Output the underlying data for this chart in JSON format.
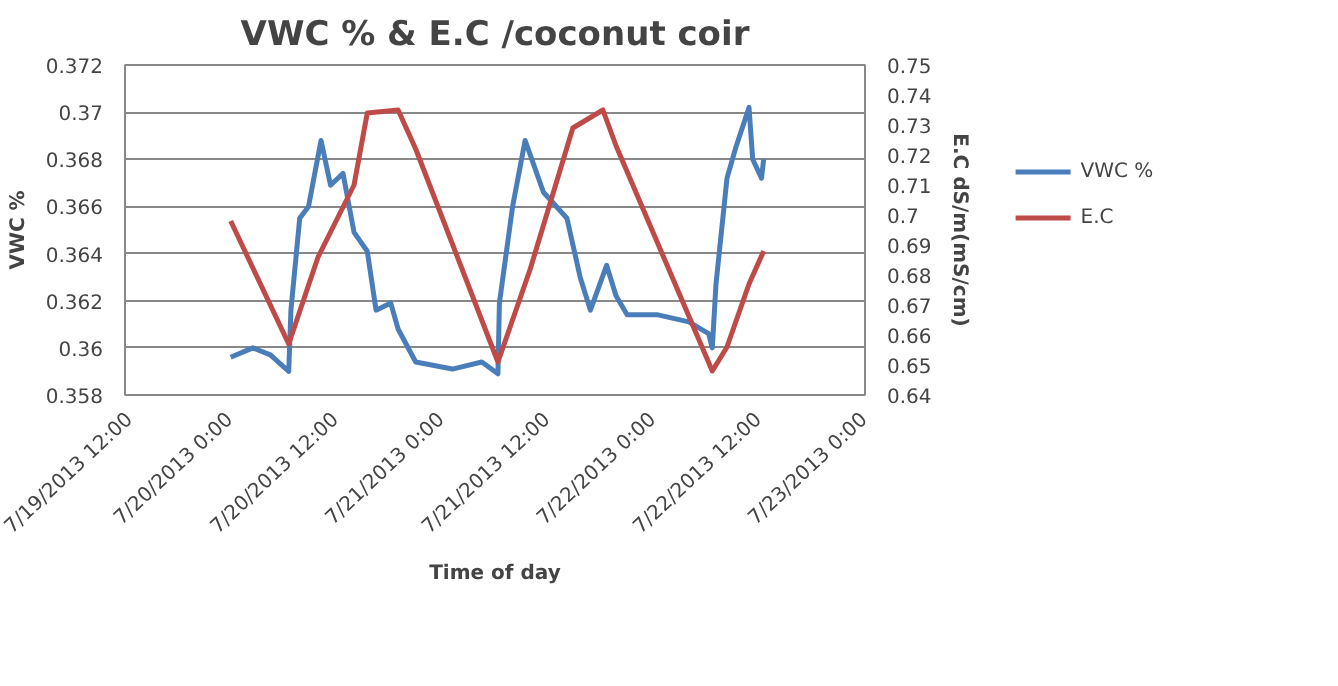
{
  "chart_data": {
    "type": "line",
    "title": "VWC % & E.C /coconut coir",
    "xlabel": "Time of day",
    "ylabel": "VWC %",
    "y2label": "E.C dS/m(mS/cm)",
    "xlim": [
      "2013-07-19T12:00",
      "2013-07-23T00:00"
    ],
    "xticks": [
      {
        "value": "2013-07-19T12:00",
        "label": "7/19/2013 12:00"
      },
      {
        "value": "2013-07-20T00:00",
        "label": "7/20/2013 0:00"
      },
      {
        "value": "2013-07-20T12:00",
        "label": "7/20/2013 12:00"
      },
      {
        "value": "2013-07-21T00:00",
        "label": "7/21/2013 0:00"
      },
      {
        "value": "2013-07-21T12:00",
        "label": "7/21/2013 12:00"
      },
      {
        "value": "2013-07-22T00:00",
        "label": "7/22/2013 0:00"
      },
      {
        "value": "2013-07-22T12:00",
        "label": "7/22/2013 12:00"
      },
      {
        "value": "2013-07-23T00:00",
        "label": "7/23/2013 0:00"
      }
    ],
    "ylim": [
      0.358,
      0.372
    ],
    "yticks": [
      0.358,
      0.36,
      0.362,
      0.364,
      0.366,
      0.368,
      0.37,
      0.372
    ],
    "y2lim": [
      0.64,
      0.75
    ],
    "y2ticks": [
      0.64,
      0.65,
      0.66,
      0.67,
      0.68,
      0.69,
      0.7,
      0.71,
      0.72,
      0.73,
      0.74,
      0.75
    ],
    "grid": "y",
    "legend": "right",
    "line_style": "solid",
    "marker": "none",
    "series": [
      {
        "name": "VWC %",
        "color": "#4a7ebb",
        "x": [
          "2013-07-20T00:00",
          "2013-07-20T02:30",
          "2013-07-20T04:30",
          "2013-07-20T06:35",
          "2013-07-20T06:50",
          "2013-07-20T07:50",
          "2013-07-20T08:50",
          "2013-07-20T10:15",
          "2013-07-20T11:20",
          "2013-07-20T12:45",
          "2013-07-20T14:00",
          "2013-07-20T15:30",
          "2013-07-20T16:30",
          "2013-07-20T18:10",
          "2013-07-20T19:00",
          "2013-07-20T21:00",
          "2013-07-21T01:10",
          "2013-07-21T04:30",
          "2013-07-21T06:20",
          "2013-07-21T06:30",
          "2013-07-21T08:00",
          "2013-07-21T09:25",
          "2013-07-21T11:30",
          "2013-07-21T14:10",
          "2013-07-21T15:40",
          "2013-07-21T16:50",
          "2013-07-21T18:40",
          "2013-07-21T19:45",
          "2013-07-21T21:00",
          "2013-07-22T00:30",
          "2013-07-22T04:00",
          "2013-07-22T06:15",
          "2013-07-22T06:40",
          "2013-07-22T07:05",
          "2013-07-22T08:20",
          "2013-07-22T09:20",
          "2013-07-22T10:50",
          "2013-07-22T11:15",
          "2013-07-22T12:15",
          "2013-07-22T12:30"
        ],
        "values": [
          0.3596,
          0.36,
          0.3597,
          0.359,
          0.3616,
          0.3655,
          0.366,
          0.3688,
          0.3669,
          0.3674,
          0.3649,
          0.3641,
          0.3616,
          0.3619,
          0.3608,
          0.3594,
          0.3591,
          0.3594,
          0.3589,
          0.3619,
          0.366,
          0.3688,
          0.3666,
          0.3655,
          0.363,
          0.3616,
          0.3635,
          0.3622,
          0.3614,
          0.3614,
          0.3611,
          0.3606,
          0.36,
          0.3627,
          0.3672,
          0.3685,
          0.3702,
          0.368,
          0.3672,
          0.368
        ]
      },
      {
        "name": "E.C",
        "color": "#be4b48",
        "axis": "y2",
        "x": [
          "2013-07-20T00:00",
          "2013-07-20T06:35",
          "2013-07-20T09:55",
          "2013-07-20T14:00",
          "2013-07-20T15:30",
          "2013-07-20T19:00",
          "2013-07-20T21:00",
          "2013-07-21T06:20",
          "2013-07-21T10:00",
          "2013-07-21T14:50",
          "2013-07-21T18:15",
          "2013-07-21T19:45",
          "2013-07-22T06:40",
          "2013-07-22T08:20",
          "2013-07-22T10:50",
          "2013-07-22T12:30"
        ],
        "values": [
          0.698,
          0.657,
          0.686,
          0.71,
          0.734,
          0.735,
          0.722,
          0.651,
          0.682,
          0.729,
          0.735,
          0.723,
          0.648,
          0.656,
          0.677,
          0.688
        ]
      }
    ]
  }
}
